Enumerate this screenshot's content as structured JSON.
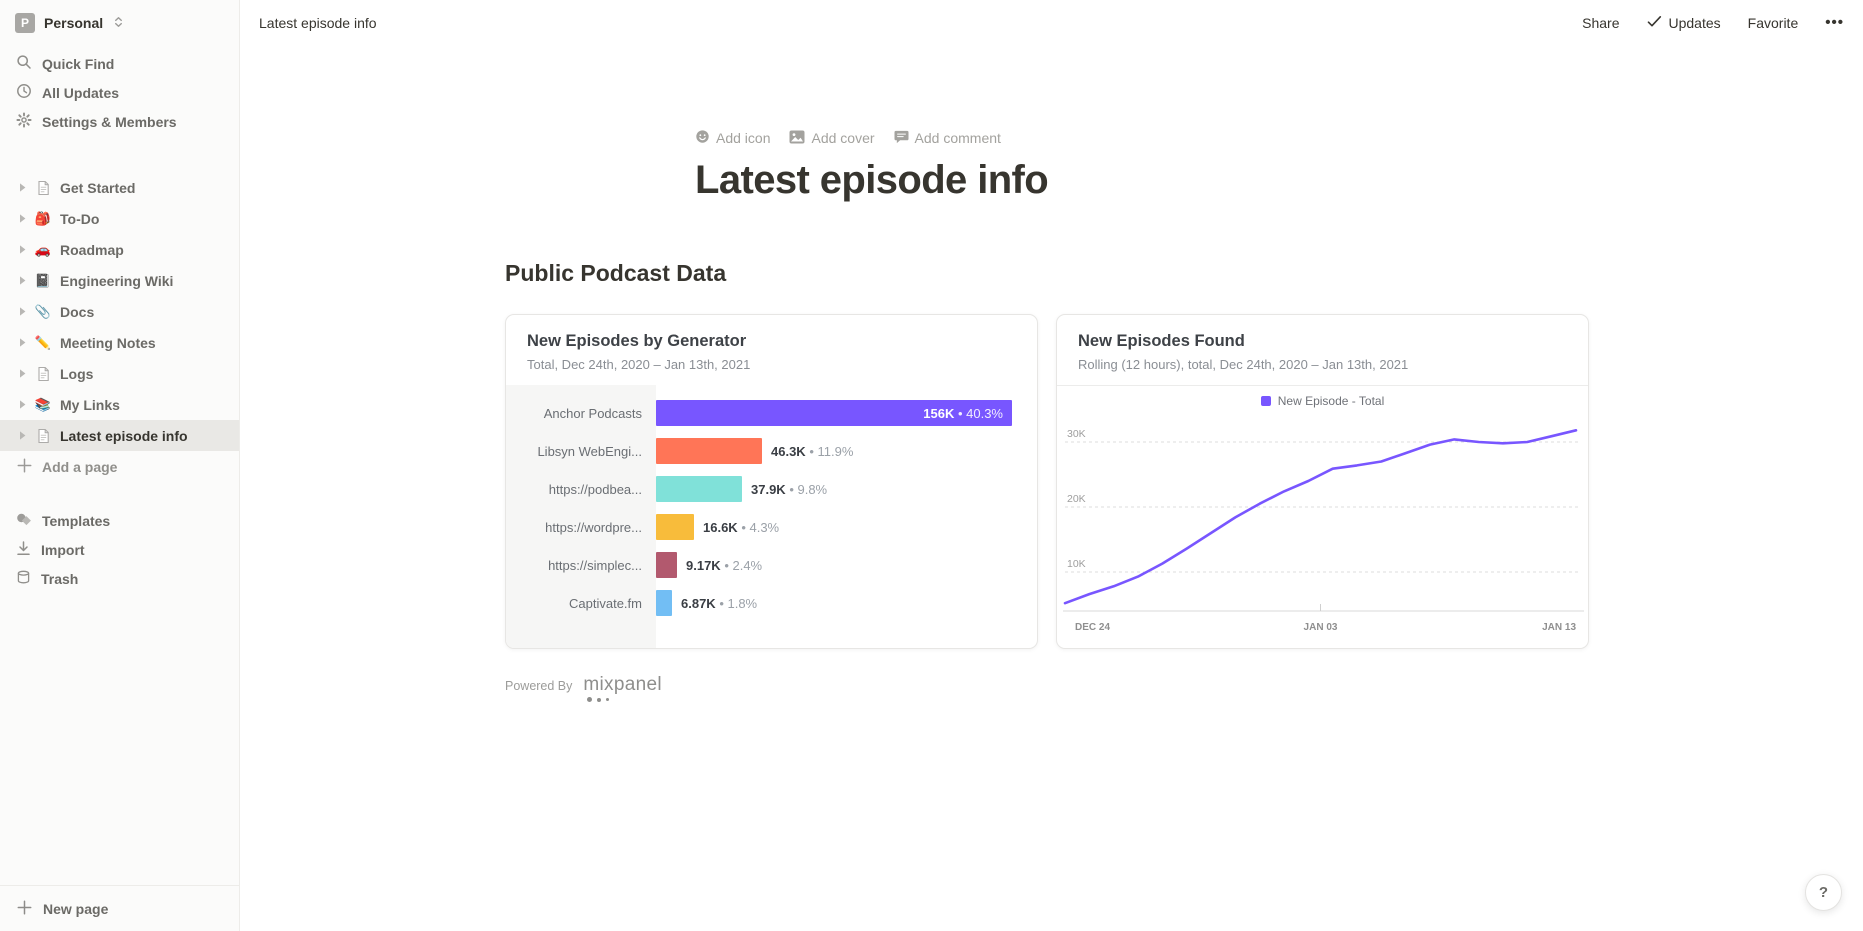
{
  "workspace": {
    "initial": "P",
    "name": "Personal"
  },
  "sidebar": {
    "menu": [
      {
        "label": "Quick Find",
        "icon": "search-icon"
      },
      {
        "label": "All Updates",
        "icon": "clock-icon"
      },
      {
        "label": "Settings & Members",
        "icon": "gear-icon"
      }
    ],
    "pages": [
      {
        "label": "Get Started",
        "icon": "page-icon",
        "emoji": "",
        "selected": false
      },
      {
        "label": "To-Do",
        "icon": "backpack-emoji",
        "emoji": "🎒",
        "selected": false
      },
      {
        "label": "Roadmap",
        "icon": "car-emoji",
        "emoji": "🚗",
        "selected": false
      },
      {
        "label": "Engineering Wiki",
        "icon": "notebook-emoji",
        "emoji": "📓",
        "selected": false
      },
      {
        "label": "Docs",
        "icon": "paperclip-emoji",
        "emoji": "📎",
        "selected": false
      },
      {
        "label": "Meeting Notes",
        "icon": "pencil-emoji",
        "emoji": "✏️",
        "selected": false
      },
      {
        "label": "Logs",
        "icon": "page-icon",
        "emoji": "",
        "selected": false
      },
      {
        "label": "My Links",
        "icon": "books-emoji",
        "emoji": "📚",
        "selected": false
      },
      {
        "label": "Latest episode info",
        "icon": "page-icon",
        "emoji": "",
        "selected": true
      }
    ],
    "add_page_label": "Add a page",
    "footer": [
      {
        "label": "Templates",
        "icon": "templates-icon"
      },
      {
        "label": "Import",
        "icon": "import-icon"
      },
      {
        "label": "Trash",
        "icon": "trash-icon"
      }
    ],
    "new_page_label": "New page"
  },
  "topbar": {
    "breadcrumb": "Latest episode info",
    "share_label": "Share",
    "updates_label": "Updates",
    "favorite_label": "Favorite",
    "more_label": "•••"
  },
  "page": {
    "add_icon_label": "Add icon",
    "add_cover_label": "Add cover",
    "add_comment_label": "Add comment",
    "title": "Latest episode info",
    "heading": "Public Podcast Data",
    "powered_by_label": "Powered By",
    "mixpanel_wordmark": "mixpanel",
    "help_label": "?"
  },
  "chart_data": [
    {
      "type": "bar",
      "orientation": "horizontal",
      "title": "New Episodes by Generator",
      "subtitle": "Total, Dec 24th, 2020 – Jan 13th, 2021",
      "categories": [
        "Anchor Podcasts",
        "Libsyn WebEngi...",
        "https://podbea...",
        "https://wordpre...",
        "https://simplec...",
        "Captivate.fm"
      ],
      "values": [
        156000,
        46300,
        37900,
        16600,
        9170,
        6870
      ],
      "value_labels": [
        "156K",
        "46.3K",
        "37.9K",
        "16.6K",
        "9.17K",
        "6.87K"
      ],
      "percent_labels": [
        "40.3%",
        "11.9%",
        "9.8%",
        "4.3%",
        "2.4%",
        "1.8%"
      ],
      "colors": [
        "#7856FF",
        "#FF7557",
        "#80E1D9",
        "#F8BC3B",
        "#B2596E",
        "#72BEF4"
      ],
      "value_inside_bar": [
        true,
        false,
        false,
        false,
        false,
        false
      ],
      "separator": "•"
    },
    {
      "type": "line",
      "title": "New Episodes Found",
      "subtitle": "Rolling (12 hours), total, Dec 24th, 2020 – Jan 13th, 2021",
      "legend": [
        {
          "label": "New Episode - Total",
          "color": "#7856FF"
        }
      ],
      "legend_position": "top-center",
      "x_tick_labels": [
        "DEC 24",
        "JAN 03",
        "JAN 13"
      ],
      "y_ticks": [
        {
          "label": "10K",
          "value": 10000
        },
        {
          "label": "20K",
          "value": 20000
        },
        {
          "label": "30K",
          "value": 30000
        }
      ],
      "ylim": [
        4000,
        33000
      ],
      "grid": "dashed-horizontal",
      "values": [
        5200,
        6600,
        7800,
        9300,
        11300,
        13600,
        16000,
        18400,
        20500,
        22400,
        24000,
        25900,
        26400,
        27000,
        28300,
        29600,
        30400,
        30000,
        29800,
        30000,
        30900,
        31800
      ]
    }
  ]
}
